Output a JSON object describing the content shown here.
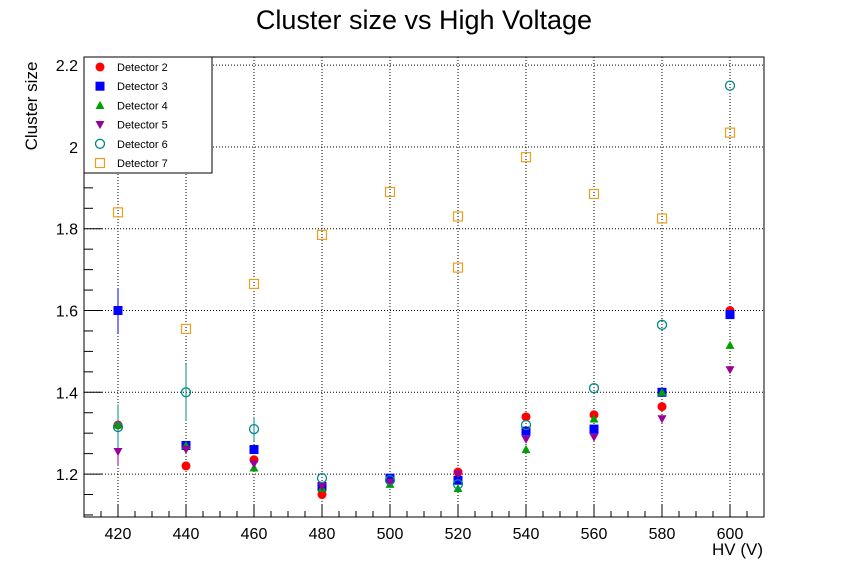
{
  "chart_data": {
    "type": "scatter",
    "title": "Cluster size vs High Voltage",
    "xlabel": "HV (V)",
    "ylabel": "Cluster size",
    "xlim": [
      410,
      610
    ],
    "ylim": [
      1.095,
      2.22
    ],
    "xticks": [
      420,
      440,
      460,
      480,
      500,
      520,
      540,
      560,
      580,
      600
    ],
    "xtick_labels": [
      "420",
      "440",
      "460",
      "480",
      "500",
      "520",
      "540",
      "560",
      "580",
      "600"
    ],
    "yticks": [
      1.2,
      1.4,
      1.6,
      1.8,
      2.0,
      2.2
    ],
    "ytick_labels": [
      "1.2",
      "1.4",
      "1.6",
      "1.8",
      "2",
      "2.2"
    ],
    "grid": true,
    "legend_position": "top-left",
    "series": [
      {
        "name": "Detector 2",
        "color": "#ff0000",
        "marker": "filled-circle",
        "points": [
          {
            "x": 420,
            "y": 1.32,
            "err": 0.04
          },
          {
            "x": 440,
            "y": 1.22
          },
          {
            "x": 460,
            "y": 1.235
          },
          {
            "x": 480,
            "y": 1.15
          },
          {
            "x": 500,
            "y": 1.185
          },
          {
            "x": 520,
            "y": 1.205
          },
          {
            "x": 540,
            "y": 1.34
          },
          {
            "x": 560,
            "y": 1.345
          },
          {
            "x": 580,
            "y": 1.365
          },
          {
            "x": 600,
            "y": 1.6
          }
        ]
      },
      {
        "name": "Detector 3",
        "color": "#0000ff",
        "marker": "filled-square",
        "points": [
          {
            "x": 420,
            "y": 1.6,
            "err": 0.055
          },
          {
            "x": 440,
            "y": 1.27
          },
          {
            "x": 460,
            "y": 1.26
          },
          {
            "x": 480,
            "y": 1.17
          },
          {
            "x": 500,
            "y": 1.19
          },
          {
            "x": 520,
            "y": 1.185
          },
          {
            "x": 540,
            "y": 1.305
          },
          {
            "x": 560,
            "y": 1.31
          },
          {
            "x": 580,
            "y": 1.4
          },
          {
            "x": 600,
            "y": 1.59
          }
        ]
      },
      {
        "name": "Detector 4",
        "color": "#00a000",
        "marker": "filled-triangle-up",
        "points": [
          {
            "x": 420,
            "y": 1.32,
            "err": 0.05
          },
          {
            "x": 440,
            "y": 1.27
          },
          {
            "x": 460,
            "y": 1.215
          },
          {
            "x": 480,
            "y": 1.165
          },
          {
            "x": 500,
            "y": 1.175
          },
          {
            "x": 520,
            "y": 1.165
          },
          {
            "x": 540,
            "y": 1.26
          },
          {
            "x": 560,
            "y": 1.335
          },
          {
            "x": 580,
            "y": 1.4
          },
          {
            "x": 600,
            "y": 1.515
          }
        ]
      },
      {
        "name": "Detector 5",
        "color": "#990099",
        "marker": "filled-triangle-down",
        "points": [
          {
            "x": 420,
            "y": 1.255,
            "err": 0.035
          },
          {
            "x": 440,
            "y": 1.26
          },
          {
            "x": 460,
            "y": 1.225
          },
          {
            "x": 480,
            "y": 1.17
          },
          {
            "x": 500,
            "y": 1.18
          },
          {
            "x": 520,
            "y": 1.2
          },
          {
            "x": 540,
            "y": 1.285
          },
          {
            "x": 560,
            "y": 1.29
          },
          {
            "x": 580,
            "y": 1.335
          },
          {
            "x": 600,
            "y": 1.455
          }
        ]
      },
      {
        "name": "Detector 6",
        "color": "#008b8b",
        "marker": "open-circle",
        "points": [
          {
            "x": 420,
            "y": 1.315,
            "err": 0.05
          },
          {
            "x": 440,
            "y": 1.4,
            "err": 0.07
          },
          {
            "x": 460,
            "y": 1.31,
            "err": 0.03
          },
          {
            "x": 480,
            "y": 1.19
          },
          {
            "x": 500,
            "y": 1.185
          },
          {
            "x": 520,
            "y": 1.175
          },
          {
            "x": 540,
            "y": 1.32
          },
          {
            "x": 560,
            "y": 1.41
          },
          {
            "x": 580,
            "y": 1.565
          },
          {
            "x": 600,
            "y": 2.15
          }
        ]
      },
      {
        "name": "Detector 7",
        "color": "#e8a020",
        "marker": "open-square",
        "points": [
          {
            "x": 420,
            "y": 1.84
          },
          {
            "x": 440,
            "y": 1.555
          },
          {
            "x": 460,
            "y": 1.665
          },
          {
            "x": 480,
            "y": 1.785
          },
          {
            "x": 500,
            "y": 1.89
          },
          {
            "x": 520,
            "y": 1.83
          },
          {
            "x": 520,
            "y": 1.705
          },
          {
            "x": 540,
            "y": 1.975
          },
          {
            "x": 560,
            "y": 1.885
          },
          {
            "x": 580,
            "y": 1.825
          },
          {
            "x": 600,
            "y": 2.035
          }
        ]
      }
    ]
  }
}
